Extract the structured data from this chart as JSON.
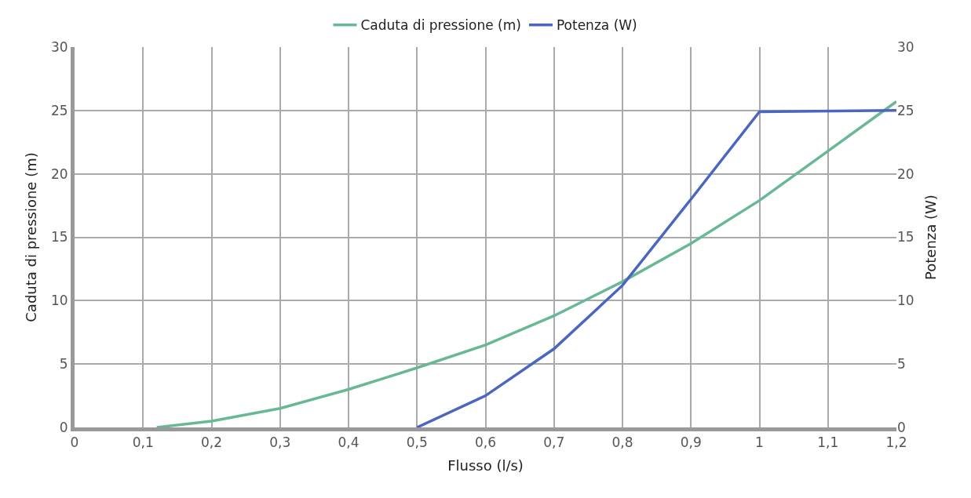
{
  "chart_data": {
    "type": "line",
    "xlabel": "Flusso (l/s)",
    "ylabel": "Caduta di pressione (m)",
    "y2label": "Potenza (W)",
    "xlim": [
      0,
      1.2
    ],
    "ylim": [
      0,
      30
    ],
    "y2lim": [
      0,
      30
    ],
    "xticks": [
      0,
      {
        "value": 0.1,
        "label": "0,1"
      },
      {
        "value": 0.2,
        "label": "0,2"
      },
      {
        "value": 0.3,
        "label": "0,3"
      },
      {
        "value": 0.4,
        "label": "0,4"
      },
      {
        "value": 0.5,
        "label": "0,5"
      },
      {
        "value": 0.6,
        "label": "0,6"
      },
      {
        "value": 0.7,
        "label": "0,7"
      },
      {
        "value": 0.8,
        "label": "0,8"
      },
      {
        "value": 0.9,
        "label": "0,9"
      },
      1,
      {
        "value": 1.1,
        "label": "1,1"
      },
      {
        "value": 1.2,
        "label": "1,2"
      }
    ],
    "yticks": [
      0,
      5,
      10,
      15,
      20,
      25,
      30
    ],
    "y2ticks": [
      0,
      5,
      10,
      15,
      20,
      25,
      30
    ],
    "grid": true,
    "legend": "top",
    "marker": "none",
    "line_style": "solid",
    "series": [
      {
        "name": "Caduta di pressione (m)",
        "color": "#68b896",
        "x": [
          0.12,
          0.2,
          0.3,
          0.4,
          0.5,
          0.6,
          0.7,
          0.8,
          0.9,
          1.0,
          1.1,
          1.2
        ],
        "values": [
          0,
          0.5,
          1.5,
          3.0,
          4.7,
          6.5,
          8.8,
          11.5,
          14.5,
          17.9,
          21.8,
          25.7
        ]
      },
      {
        "name": "Potenza (W)",
        "color": "#4a66c0",
        "axis": "y2",
        "x": [
          0.5,
          0.6,
          0.7,
          0.8,
          0.9,
          1.0,
          1.2
        ],
        "values": [
          0,
          2.5,
          6.2,
          11.2,
          18,
          24.9,
          25
        ]
      }
    ]
  }
}
